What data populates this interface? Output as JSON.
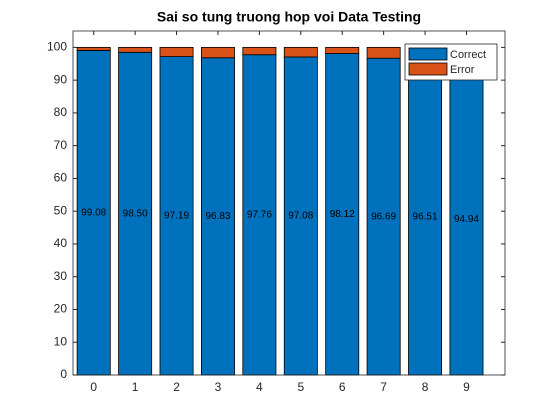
{
  "chart_data": {
    "type": "bar",
    "stacked": true,
    "title": "Sai so tung truong hop voi Data Testing",
    "x": [
      0,
      1,
      2,
      3,
      4,
      5,
      6,
      7,
      8,
      9
    ],
    "series": [
      {
        "name": "Correct",
        "color": "#0072BD",
        "values": [
          99.08,
          98.5,
          97.19,
          96.83,
          97.76,
          97.08,
          98.12,
          96.69,
          96.51,
          94.94
        ],
        "value_labels": [
          "99.08",
          "98.50",
          "97.19",
          "96.83",
          "97.76",
          "97.08",
          "98.12",
          "96.69",
          "96.51",
          "94.94"
        ]
      },
      {
        "name": "Error",
        "color": "#D95319",
        "values": [
          0.92,
          1.5,
          2.81,
          3.17,
          2.24,
          2.92,
          1.88,
          3.31,
          3.49,
          5.06
        ]
      }
    ],
    "xlim": [
      -0.5,
      9.93
    ],
    "xticks": [
      0,
      1,
      2,
      3,
      4,
      5,
      6,
      7,
      8,
      9
    ],
    "ylim": [
      0,
      105
    ],
    "yticks": [
      0,
      10,
      20,
      30,
      40,
      50,
      60,
      70,
      80,
      90,
      100
    ],
    "legend": "northeast",
    "grid": false
  }
}
